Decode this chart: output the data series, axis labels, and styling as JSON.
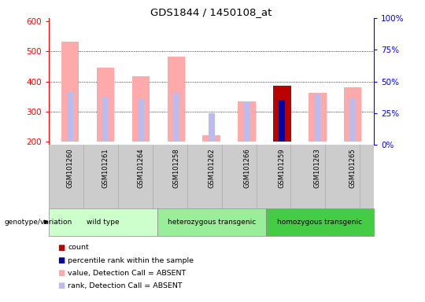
{
  "title": "GDS1844 / 1450108_at",
  "samples": [
    "GSM101260",
    "GSM101261",
    "GSM101264",
    "GSM101258",
    "GSM101262",
    "GSM101266",
    "GSM101259",
    "GSM101263",
    "GSM101265"
  ],
  "group_labels": [
    "wild type",
    "heterozygous transgenic",
    "homozygous transgenic"
  ],
  "group_sizes": [
    3,
    3,
    3
  ],
  "group_colors": [
    "#ccffcc",
    "#99ee99",
    "#44cc44"
  ],
  "value_absent": [
    533,
    447,
    417,
    482,
    222,
    335,
    null,
    362,
    380
  ],
  "rank_absent": [
    365,
    350,
    342,
    363,
    295,
    333,
    null,
    360,
    345
  ],
  "count": [
    null,
    null,
    null,
    null,
    null,
    null,
    385,
    null,
    null
  ],
  "percentile": [
    null,
    null,
    null,
    null,
    null,
    null,
    340,
    null,
    null
  ],
  "ylim_left": [
    190,
    610
  ],
  "ylim_right": [
    0,
    100
  ],
  "yticks_left": [
    200,
    300,
    400,
    500,
    600
  ],
  "yticks_right": [
    0,
    25,
    50,
    75,
    100
  ],
  "bar_bottom": 200,
  "color_value_absent": "#ffaaaa",
  "color_rank_absent": "#bbbbee",
  "color_count": "#bb0000",
  "color_percentile": "#0000aa",
  "pink_bar_width": 0.5,
  "purple_bar_width": 0.18,
  "legend_items": [
    {
      "color": "#bb0000",
      "label": "count"
    },
    {
      "color": "#0000aa",
      "label": "percentile rank within the sample"
    },
    {
      "color": "#ffaaaa",
      "label": "value, Detection Call = ABSENT"
    },
    {
      "color": "#bbbbee",
      "label": "rank, Detection Call = ABSENT"
    }
  ]
}
